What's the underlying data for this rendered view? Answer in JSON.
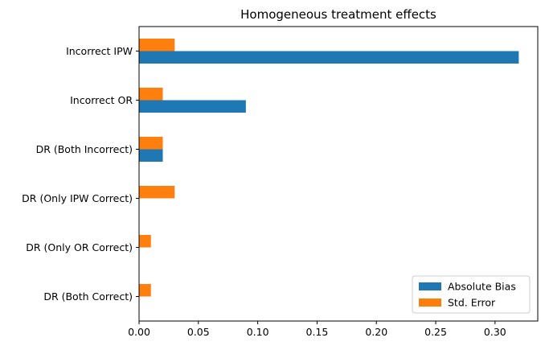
{
  "chart_data": {
    "type": "bar",
    "orientation": "horizontal",
    "title": "Homogeneous treatment effects",
    "xlabel": "",
    "ylabel": "",
    "categories": [
      "DR (Both Correct)",
      "DR (Only OR Correct)",
      "DR (Only IPW Correct)",
      "DR (Both Incorrect)",
      "Incorrect OR",
      "Incorrect IPW"
    ],
    "series": [
      {
        "name": "Absolute Bias",
        "color": "#1f77b4",
        "values": [
          0.0,
          0.0,
          0.0,
          0.02,
          0.09,
          0.32
        ]
      },
      {
        "name": "Std. Error",
        "color": "#ff7f0e",
        "values": [
          0.01,
          0.01,
          0.03,
          0.02,
          0.02,
          0.03
        ]
      }
    ],
    "xlim": [
      0,
      0.336
    ],
    "xticks": [
      0.0,
      0.05,
      0.1,
      0.15,
      0.2,
      0.25,
      0.3
    ],
    "xtick_labels": [
      "0.00",
      "0.05",
      "0.10",
      "0.15",
      "0.20",
      "0.25",
      "0.30"
    ],
    "grid": false,
    "legend_position": "bottom-right"
  }
}
